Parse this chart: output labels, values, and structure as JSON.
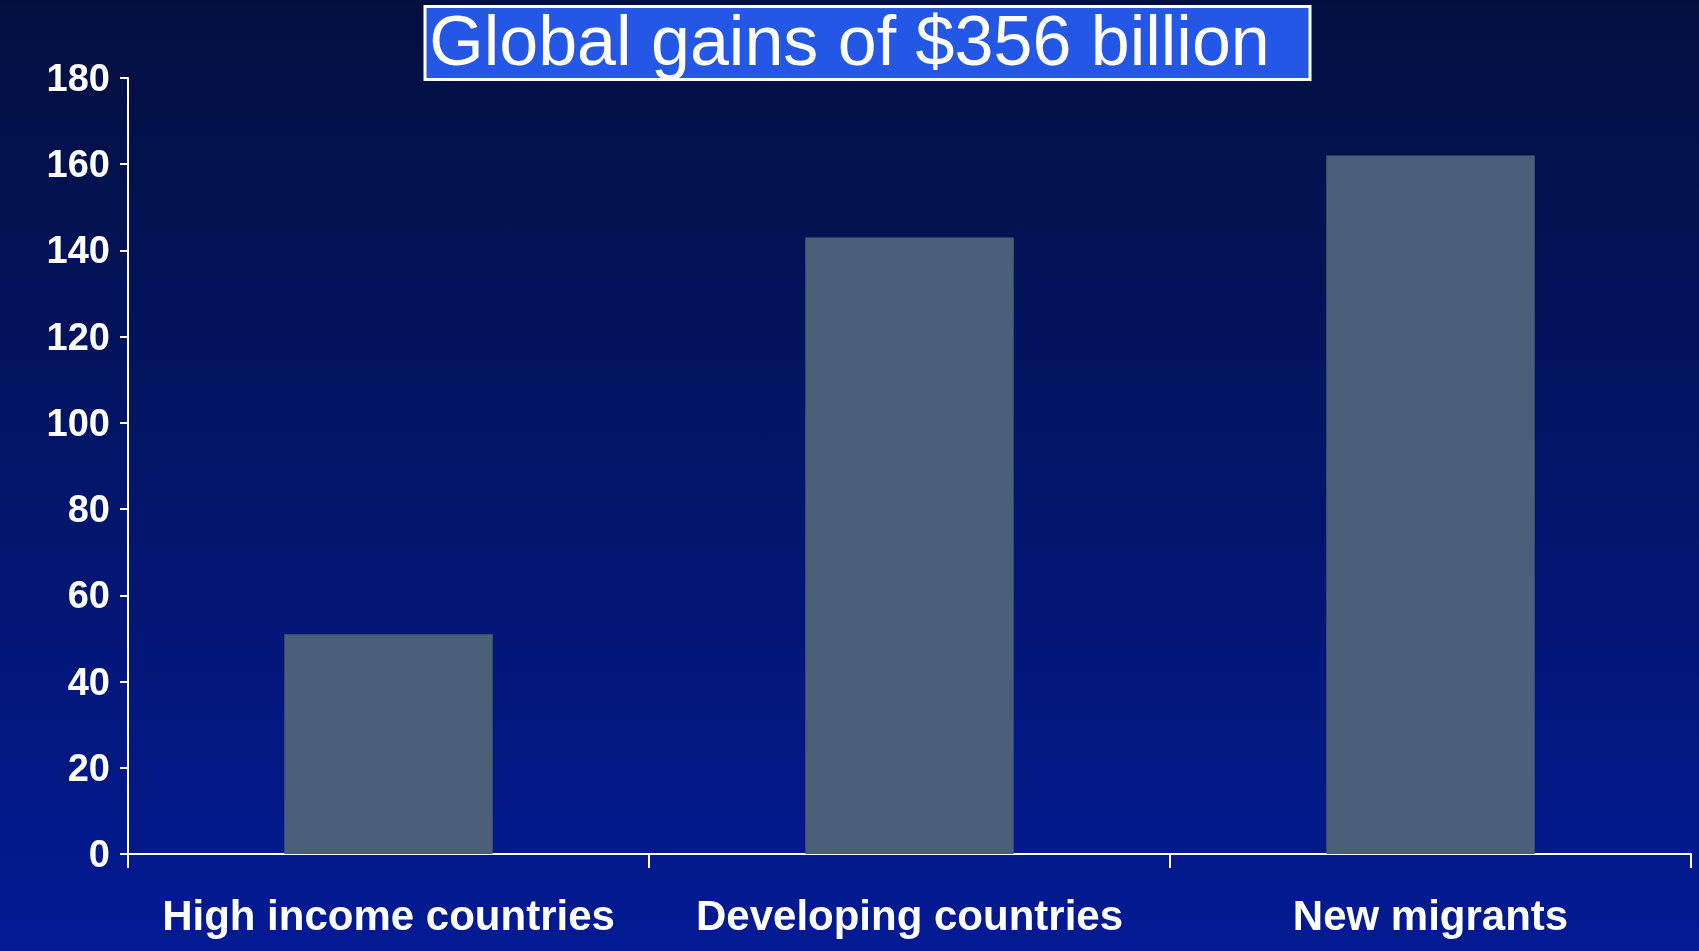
{
  "chart_data": {
    "type": "bar",
    "title": "Global gains of $356 billion",
    "categories": [
      "High income countries",
      "Developing countries",
      "New migrants"
    ],
    "values": [
      51,
      143,
      162
    ],
    "color": "#4a6078",
    "ylim": [
      0,
      180
    ],
    "yticks": [
      0,
      20,
      40,
      60,
      80,
      100,
      120,
      140,
      160,
      180
    ],
    "grid": false
  }
}
